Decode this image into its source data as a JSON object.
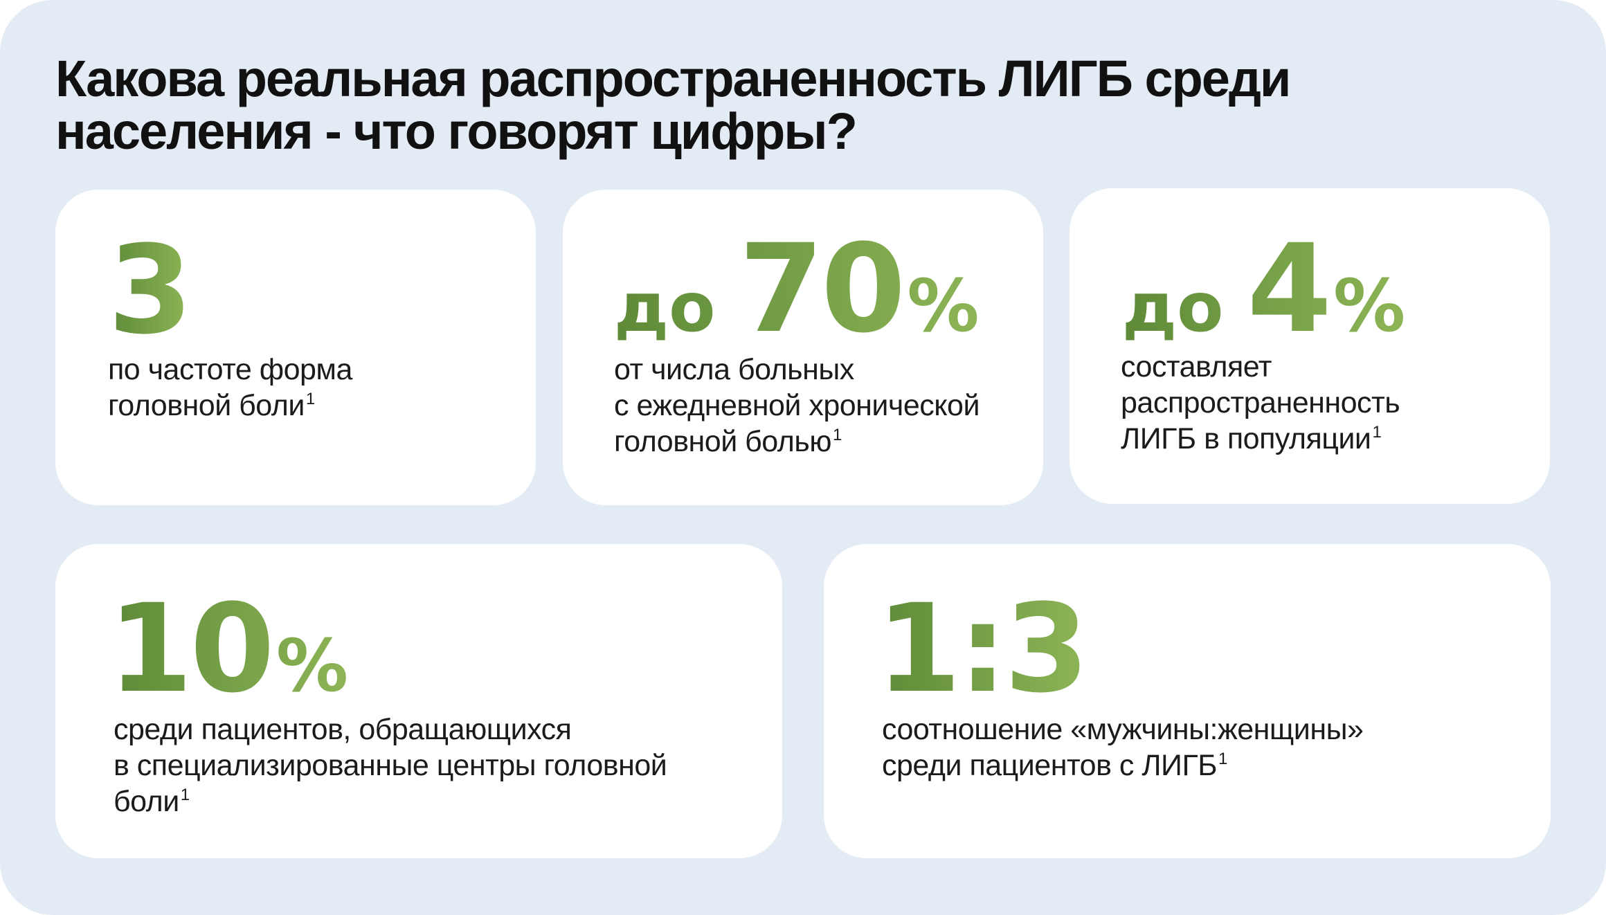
{
  "title": {
    "line1": "Какова реальная распространенность ЛИГБ среди",
    "line2": "населения - что говорят цифры?"
  },
  "cards": [
    {
      "prefix": "",
      "value": "3",
      "suffix": "",
      "lines": [
        "по частоте форма",
        "головной боли"
      ],
      "footnote": "1"
    },
    {
      "prefix": "до",
      "value": "70",
      "suffix": "%",
      "lines": [
        "от числа больных",
        "с ежедневной хронической",
        "головной болью"
      ],
      "footnote": "1"
    },
    {
      "prefix": "до",
      "value": "4",
      "suffix": "%",
      "lines": [
        "составляет",
        "распространенность",
        "ЛИГБ в популяции"
      ],
      "footnote": "1"
    },
    {
      "prefix": "",
      "value": "10",
      "suffix": "%",
      "lines": [
        "среди пациентов, обращающихся",
        "в специализированные центры головной",
        "боли"
      ],
      "footnote": "1"
    },
    {
      "prefix": "",
      "value": "1:3",
      "suffix": "",
      "lines": [
        "соотношение «мужчины:женщины»",
        "среди пациентов с ЛИГБ"
      ],
      "footnote": "1"
    }
  ],
  "colors": {
    "background": "#e3ebf5",
    "card": "#ffffff",
    "accent_dark": "#5e8a38",
    "accent_light": "#8db556",
    "text": "#1b1b1b"
  }
}
